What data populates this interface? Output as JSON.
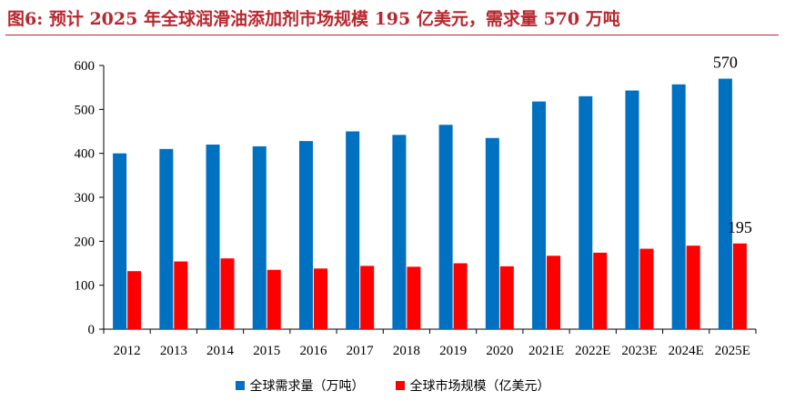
{
  "figure_title": "图6:  预计 2025 年全球润滑油添加剂市场规模 195 亿美元，需求量 570 万吨",
  "colors": {
    "demand": "#0070c0",
    "market": "#ff0000",
    "title": "#b7282e"
  },
  "chart_data": {
    "type": "bar",
    "title": "",
    "xlabel": "",
    "ylabel": "",
    "ylim": [
      0,
      600
    ],
    "yticks": [
      0,
      100,
      200,
      300,
      400,
      500,
      600
    ],
    "grid": false,
    "legend_position": "bottom",
    "categories": [
      "2012",
      "2013",
      "2014",
      "2015",
      "2016",
      "2017",
      "2018",
      "2019",
      "2020",
      "2021E",
      "2022E",
      "2023E",
      "2024E",
      "2025E"
    ],
    "series": [
      {
        "name": "全球需求量（万吨）",
        "values": [
          400,
          410,
          420,
          416,
          428,
          450,
          442,
          465,
          435,
          518,
          530,
          543,
          557,
          570
        ]
      },
      {
        "name": "全球市场规模（亿美元）",
        "values": [
          132,
          154,
          161,
          135,
          138,
          144,
          142,
          150,
          143,
          167,
          174,
          183,
          190,
          195
        ]
      }
    ],
    "annotations": [
      {
        "series": 0,
        "category": "2025E",
        "text": "570"
      },
      {
        "series": 1,
        "category": "2025E",
        "text": "195"
      }
    ]
  }
}
